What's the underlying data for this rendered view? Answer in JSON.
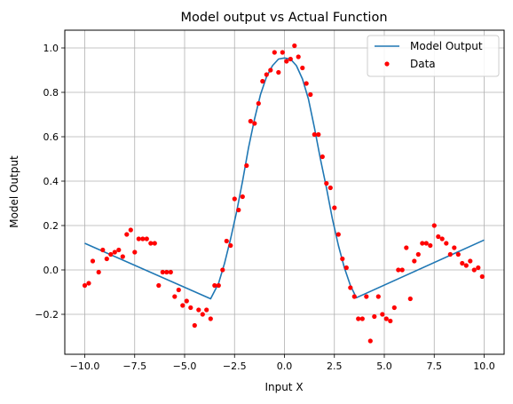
{
  "chart_data": {
    "type": "line+scatter",
    "title": "Model output vs Actual Function",
    "xlabel": "Input X",
    "ylabel": "Model Output",
    "xlim": [
      -11,
      11
    ],
    "ylim": [
      -0.38,
      1.08
    ],
    "xticks": [
      -10,
      -7.5,
      -5,
      -2.5,
      0,
      2.5,
      5,
      7.5,
      10
    ],
    "xtick_labels": [
      "−10.0",
      "−7.5",
      "−5.0",
      "−2.5",
      "0.0",
      "2.5",
      "5.0",
      "7.5",
      "10.0"
    ],
    "yticks": [
      -0.2,
      0,
      0.2,
      0.4,
      0.6,
      0.8,
      1.0
    ],
    "ytick_labels": [
      "−0.2",
      "0.0",
      "0.2",
      "0.4",
      "0.6",
      "0.8",
      "1.0"
    ],
    "grid": true,
    "legend": {
      "position": "top-right",
      "entries": [
        "Model Output",
        "Data"
      ]
    },
    "colors": {
      "line": "#1f77b4",
      "points": "#ff0000",
      "grid": "#b0b0b0"
    },
    "series": [
      {
        "name": "Model Output",
        "type": "line",
        "x": [
          -10,
          -3.7,
          -3.3,
          -3.0,
          -2.7,
          -2.4,
          -2.1,
          -1.8,
          -1.5,
          -1.2,
          -0.9,
          -0.6,
          -0.3,
          0.0,
          0.3,
          0.6,
          0.9,
          1.2,
          1.5,
          1.8,
          2.1,
          2.4,
          2.7,
          3.0,
          3.3,
          3.6,
          10
        ],
        "y": [
          0.12,
          -0.13,
          -0.06,
          0.03,
          0.14,
          0.26,
          0.4,
          0.55,
          0.68,
          0.79,
          0.87,
          0.92,
          0.95,
          0.955,
          0.95,
          0.92,
          0.86,
          0.77,
          0.64,
          0.5,
          0.37,
          0.23,
          0.11,
          0.01,
          -0.07,
          -0.125,
          0.135
        ]
      },
      {
        "name": "Data",
        "type": "scatter",
        "x": [
          -10,
          -9.8,
          -9.6,
          -9.3,
          -9.1,
          -8.9,
          -8.7,
          -8.5,
          -8.3,
          -8.1,
          -7.9,
          -7.7,
          -7.5,
          -7.3,
          -7.1,
          -6.9,
          -6.7,
          -6.5,
          -6.3,
          -6.1,
          -5.9,
          -5.7,
          -5.5,
          -5.3,
          -5.1,
          -4.9,
          -4.7,
          -4.5,
          -4.3,
          -4.1,
          -3.9,
          -3.7,
          -3.5,
          -3.3,
          -3.1,
          -2.9,
          -2.7,
          -2.5,
          -2.3,
          -2.1,
          -1.9,
          -1.7,
          -1.5,
          -1.3,
          -1.1,
          -0.9,
          -0.7,
          -0.5,
          -0.3,
          -0.1,
          0.1,
          0.3,
          0.5,
          0.7,
          0.9,
          1.1,
          1.3,
          1.5,
          1.7,
          1.9,
          2.1,
          2.3,
          2.5,
          2.7,
          2.9,
          3.1,
          3.3,
          3.5,
          3.7,
          3.9,
          4.1,
          4.3,
          4.5,
          4.7,
          4.9,
          5.1,
          5.3,
          5.5,
          5.7,
          5.9,
          6.1,
          6.3,
          6.5,
          6.7,
          6.9,
          7.1,
          7.3,
          7.5,
          7.7,
          7.9,
          8.1,
          8.3,
          8.5,
          8.7,
          8.9,
          9.1,
          9.3,
          9.5,
          9.7,
          9.9
        ],
        "y": [
          -0.07,
          -0.06,
          0.04,
          -0.01,
          0.09,
          0.05,
          0.07,
          0.08,
          0.09,
          0.06,
          0.16,
          0.18,
          0.08,
          0.14,
          0.14,
          0.14,
          0.12,
          0.12,
          -0.07,
          -0.01,
          -0.01,
          -0.01,
          -0.12,
          -0.09,
          -0.16,
          -0.14,
          -0.17,
          -0.25,
          -0.18,
          -0.2,
          -0.18,
          -0.22,
          -0.07,
          -0.07,
          0.0,
          0.13,
          0.11,
          0.32,
          0.27,
          0.33,
          0.47,
          0.67,
          0.66,
          0.75,
          0.85,
          0.88,
          0.9,
          0.98,
          0.89,
          0.98,
          0.94,
          0.95,
          1.01,
          0.96,
          0.91,
          0.84,
          0.79,
          0.61,
          0.61,
          0.51,
          0.39,
          0.37,
          0.28,
          0.16,
          0.05,
          0.01,
          -0.08,
          -0.12,
          -0.22,
          -0.22,
          -0.12,
          -0.32,
          -0.21,
          -0.12,
          -0.2,
          -0.22,
          -0.23,
          -0.17,
          0.0,
          0.0,
          0.1,
          -0.13,
          0.04,
          0.07,
          0.12,
          0.12,
          0.11,
          0.2,
          0.15,
          0.14,
          0.12,
          0.07,
          0.1,
          0.07,
          0.03,
          0.02,
          0.04,
          0.0,
          0.01,
          -0.03
        ]
      }
    ]
  }
}
